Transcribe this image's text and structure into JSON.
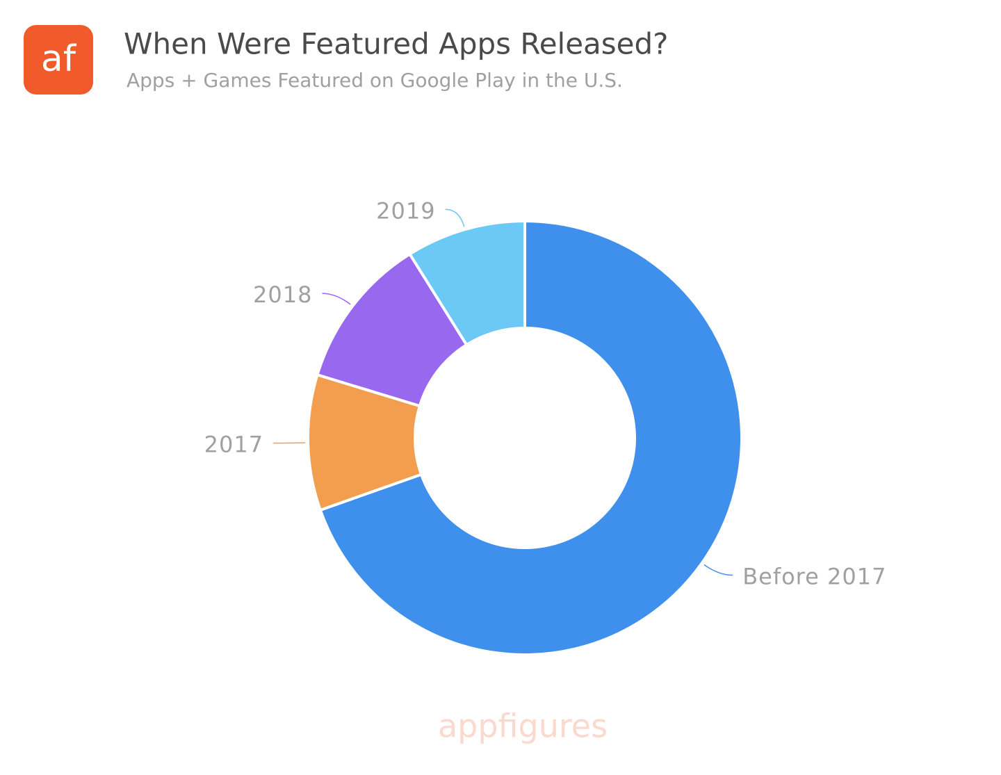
{
  "logo": "af",
  "watermark": "appfigures",
  "chart_data": {
    "type": "donut",
    "title": "When Were Featured Apps Released?",
    "subtitle": "Apps + Games Featured on Google Play in the U.S.",
    "categories": [
      "Before 2017",
      "2017",
      "2018",
      "2019"
    ],
    "values": [
      69.6,
      10.1,
      11.4,
      8.9
    ],
    "colors": [
      "#3f8fec",
      "#f39e4e",
      "#9868ee",
      "#6cc8f5"
    ]
  }
}
